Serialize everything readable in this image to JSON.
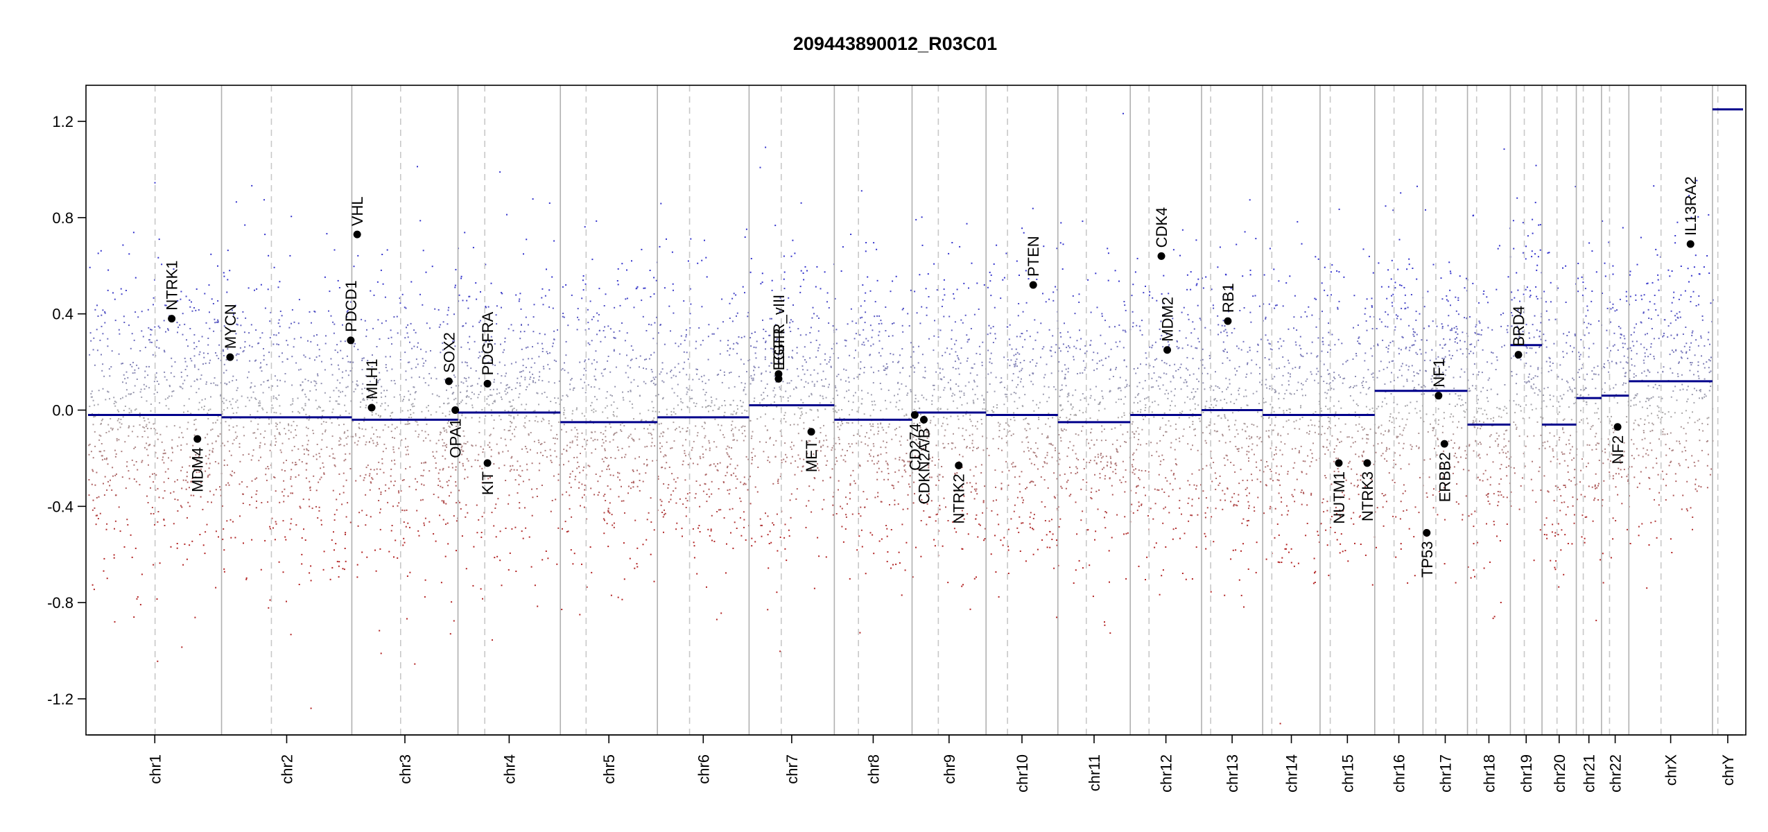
{
  "chart_data": {
    "type": "scatter",
    "title": "209443890012_R03C01",
    "xlabel": "",
    "ylabel": "",
    "ylim": [
      -1.35,
      1.35
    ],
    "yticks": [
      -1.2,
      -0.8,
      -0.4,
      0.0,
      0.4,
      0.8,
      1.2
    ],
    "ytick_labels": [
      "-1.2",
      "-0.8",
      "-0.4",
      "0.0",
      "0.4",
      "0.8",
      "1.2"
    ],
    "grid": false,
    "colors": {
      "segment": "#00008b",
      "positive_points": "#3333cc",
      "negative_points": "#b22222",
      "neutral_points": "#aaaaaa",
      "chrom_boundary": "#b0b0b0",
      "centromere": "#c8c8c8",
      "gene_marker": "#000000"
    },
    "chromosomes": [
      {
        "name": "chr1",
        "length": 249,
        "cen": 125
      },
      {
        "name": "chr2",
        "length": 243,
        "cen": 93
      },
      {
        "name": "chr3",
        "length": 198,
        "cen": 91
      },
      {
        "name": "chr4",
        "length": 191,
        "cen": 50
      },
      {
        "name": "chr5",
        "length": 181,
        "cen": 48
      },
      {
        "name": "chr6",
        "length": 171,
        "cen": 60
      },
      {
        "name": "chr7",
        "length": 159,
        "cen": 60
      },
      {
        "name": "chr8",
        "length": 145,
        "cen": 45
      },
      {
        "name": "chr9",
        "length": 138,
        "cen": 49
      },
      {
        "name": "chr10",
        "length": 134,
        "cen": 40
      },
      {
        "name": "chr11",
        "length": 135,
        "cen": 53
      },
      {
        "name": "chr12",
        "length": 133,
        "cen": 35
      },
      {
        "name": "chr13",
        "length": 114,
        "cen": 17
      },
      {
        "name": "chr14",
        "length": 107,
        "cen": 17
      },
      {
        "name": "chr15",
        "length": 102,
        "cen": 19
      },
      {
        "name": "chr16",
        "length": 90,
        "cen": 36
      },
      {
        "name": "chr17",
        "length": 83,
        "cen": 24
      },
      {
        "name": "chr18",
        "length": 80,
        "cen": 17
      },
      {
        "name": "chr19",
        "length": 59,
        "cen": 26
      },
      {
        "name": "chr20",
        "length": 64,
        "cen": 28
      },
      {
        "name": "chr21",
        "length": 47,
        "cen": 13
      },
      {
        "name": "chr22",
        "length": 51,
        "cen": 15
      },
      {
        "name": "chrX",
        "length": 156,
        "cen": 60
      },
      {
        "name": "chrY",
        "length": 57,
        "cen": 10
      }
    ],
    "segments": [
      {
        "chrom": "chr1",
        "start": 0,
        "end": 249,
        "value": -0.02
      },
      {
        "chrom": "chr2",
        "start": 0,
        "end": 243,
        "value": -0.03
      },
      {
        "chrom": "chr3",
        "start": 0,
        "end": 198,
        "value": -0.04
      },
      {
        "chrom": "chr4",
        "start": 0,
        "end": 191,
        "value": -0.01
      },
      {
        "chrom": "chr5",
        "start": 0,
        "end": 181,
        "value": -0.05
      },
      {
        "chrom": "chr6",
        "start": 0,
        "end": 171,
        "value": -0.03
      },
      {
        "chrom": "chr7",
        "start": 0,
        "end": 159,
        "value": 0.02
      },
      {
        "chrom": "chr8",
        "start": 0,
        "end": 145,
        "value": -0.04
      },
      {
        "chrom": "chr9",
        "start": 0,
        "end": 138,
        "value": -0.01
      },
      {
        "chrom": "chr10",
        "start": 0,
        "end": 134,
        "value": -0.02
      },
      {
        "chrom": "chr11",
        "start": 0,
        "end": 135,
        "value": -0.05
      },
      {
        "chrom": "chr12",
        "start": 0,
        "end": 133,
        "value": -0.02
      },
      {
        "chrom": "chr13",
        "start": 0,
        "end": 114,
        "value": 0.0
      },
      {
        "chrom": "chr14",
        "start": 0,
        "end": 107,
        "value": -0.02
      },
      {
        "chrom": "chr15",
        "start": 0,
        "end": 102,
        "value": -0.02
      },
      {
        "chrom": "chr16",
        "start": 0,
        "end": 90,
        "value": 0.08
      },
      {
        "chrom": "chr17",
        "start": 0,
        "end": 83,
        "value": 0.08
      },
      {
        "chrom": "chr18",
        "start": 0,
        "end": 80,
        "value": -0.06
      },
      {
        "chrom": "chr19",
        "start": 0,
        "end": 59,
        "value": 0.27
      },
      {
        "chrom": "chr20",
        "start": 0,
        "end": 64,
        "value": -0.06
      },
      {
        "chrom": "chr21",
        "start": 0,
        "end": 47,
        "value": 0.05
      },
      {
        "chrom": "chr22",
        "start": 0,
        "end": 51,
        "value": 0.06
      },
      {
        "chrom": "chrX",
        "start": 0,
        "end": 156,
        "value": 0.12
      },
      {
        "chrom": "chrY",
        "start": 0,
        "end": 57,
        "value": 1.25
      }
    ],
    "genes": [
      {
        "name": "NTRK1",
        "chrom": "chr1",
        "pos": 156,
        "value": 0.38,
        "label_dir": "up"
      },
      {
        "name": "MDM4",
        "chrom": "chr1",
        "pos": 204,
        "value": -0.12,
        "label_dir": "down"
      },
      {
        "name": "MYCN",
        "chrom": "chr2",
        "pos": 16,
        "value": 0.22,
        "label_dir": "up"
      },
      {
        "name": "PDCD1",
        "chrom": "chr2",
        "pos": 241,
        "value": 0.29,
        "label_dir": "up"
      },
      {
        "name": "VHL",
        "chrom": "chr3",
        "pos": 10,
        "value": 0.73,
        "label_dir": "up"
      },
      {
        "name": "MLH1",
        "chrom": "chr3",
        "pos": 37,
        "value": 0.01,
        "label_dir": "up"
      },
      {
        "name": "SOX2",
        "chrom": "chr3",
        "pos": 181,
        "value": 0.12,
        "label_dir": "up"
      },
      {
        "name": "OPA1",
        "chrom": "chr3",
        "pos": 193,
        "value": 0.0,
        "label_dir": "down"
      },
      {
        "name": "PDGFRA",
        "chrom": "chr4",
        "pos": 55,
        "value": 0.11,
        "label_dir": "up"
      },
      {
        "name": "KIT",
        "chrom": "chr4",
        "pos": 55,
        "value": -0.22,
        "label_dir": "down"
      },
      {
        "name": "EGFR",
        "chrom": "chr7",
        "pos": 55,
        "value": 0.13,
        "label_dir": "up"
      },
      {
        "name": "EGFR_vIII",
        "chrom": "chr7",
        "pos": 55,
        "value": 0.15,
        "label_dir": "up"
      },
      {
        "name": "MET",
        "chrom": "chr7",
        "pos": 116,
        "value": -0.09,
        "label_dir": "down"
      },
      {
        "name": "CD274",
        "chrom": "chr9",
        "pos": 5,
        "value": -0.02,
        "label_dir": "down"
      },
      {
        "name": "CDKN2A/B",
        "chrom": "chr9",
        "pos": 22,
        "value": -0.04,
        "label_dir": "down"
      },
      {
        "name": "NTRK2",
        "chrom": "chr9",
        "pos": 87,
        "value": -0.23,
        "label_dir": "down"
      },
      {
        "name": "PTEN",
        "chrom": "chr10",
        "pos": 88,
        "value": 0.52,
        "label_dir": "up"
      },
      {
        "name": "CDK4",
        "chrom": "chr12",
        "pos": 58,
        "value": 0.64,
        "label_dir": "up"
      },
      {
        "name": "MDM2",
        "chrom": "chr12",
        "pos": 69,
        "value": 0.25,
        "label_dir": "up"
      },
      {
        "name": "RB1",
        "chrom": "chr13",
        "pos": 49,
        "value": 0.37,
        "label_dir": "up"
      },
      {
        "name": "NUTM1",
        "chrom": "chr15",
        "pos": 35,
        "value": -0.22,
        "label_dir": "down"
      },
      {
        "name": "NTRK3",
        "chrom": "chr15",
        "pos": 88,
        "value": -0.22,
        "label_dir": "down"
      },
      {
        "name": "TP53",
        "chrom": "chr17",
        "pos": 7,
        "value": -0.51,
        "label_dir": "down"
      },
      {
        "name": "NF1",
        "chrom": "chr17",
        "pos": 29,
        "value": 0.06,
        "label_dir": "up"
      },
      {
        "name": "ERBB2",
        "chrom": "chr17",
        "pos": 40,
        "value": -0.14,
        "label_dir": "down"
      },
      {
        "name": "BRD4",
        "chrom": "chr19",
        "pos": 15,
        "value": 0.23,
        "label_dir": "up"
      },
      {
        "name": "NF2",
        "chrom": "chr22",
        "pos": 30,
        "value": -0.07,
        "label_dir": "down"
      },
      {
        "name": "IL13RA2",
        "chrom": "chrX",
        "pos": 115,
        "value": 0.69,
        "label_dir": "up"
      }
    ]
  }
}
